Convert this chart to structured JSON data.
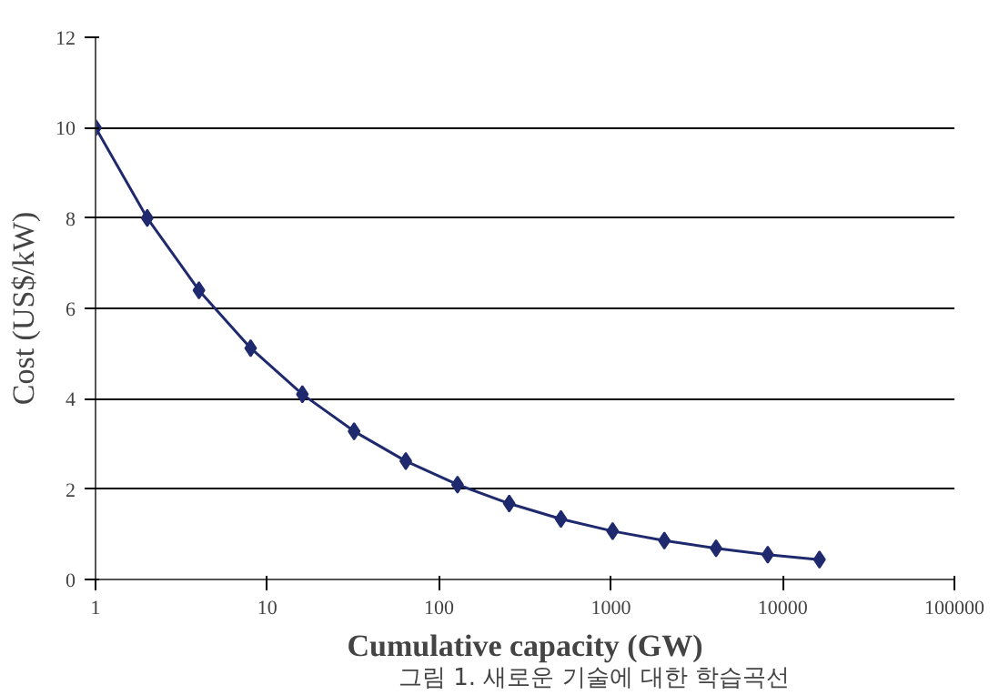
{
  "chart_data": {
    "type": "line",
    "xlabel": "Cumulative capacity (GW)",
    "ylabel": "Cost (US$/kW)",
    "annotations": [
      "그림 1. 새로운 기술에 대한 학습곡선"
    ],
    "x": [
      1,
      2,
      4,
      8,
      16,
      32,
      64,
      128,
      256,
      512,
      1024,
      2048,
      4096,
      8192,
      16384
    ],
    "series": [
      {
        "color": "#1f2a6e",
        "values": [
          10,
          8,
          6.4,
          5.12,
          4.1,
          3.28,
          2.62,
          2.1,
          1.68,
          1.34,
          1.07,
          0.86,
          0.69,
          0.55,
          0.44
        ]
      }
    ],
    "log": "x",
    "xlim": [
      1,
      100000
    ],
    "xticks": [
      1,
      10,
      100,
      1000,
      10000,
      100000
    ],
    "ylim": [
      0,
      12
    ],
    "yticks": [
      0,
      2,
      4,
      6,
      8,
      10,
      12
    ],
    "grid": "y",
    "marker": "diamond",
    "line_style": "solid"
  }
}
